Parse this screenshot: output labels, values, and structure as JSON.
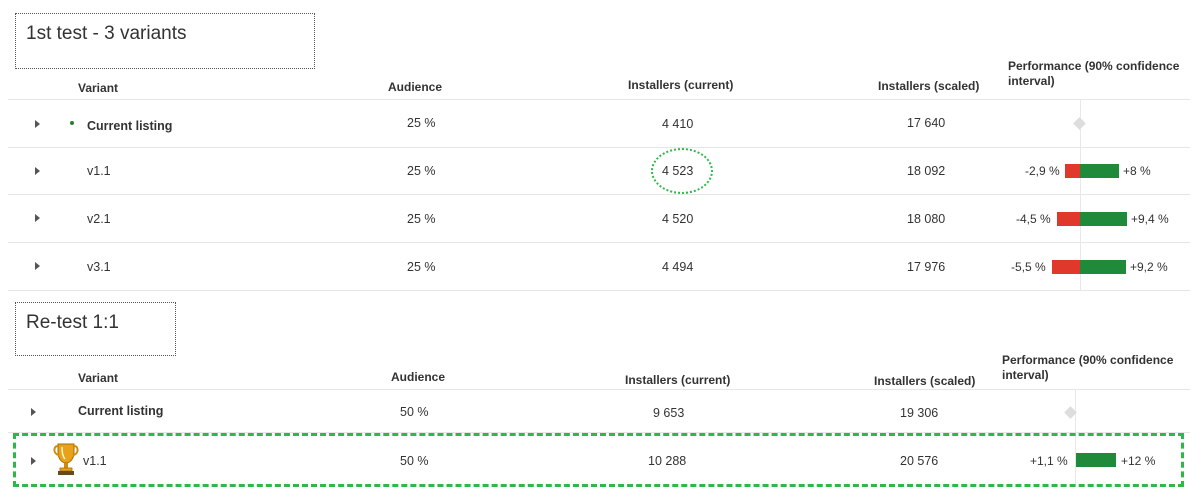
{
  "test1": {
    "title": "1st test - 3 variants",
    "headers": {
      "variant": "Variant",
      "audience": "Audience",
      "installers_current": "Installers (current)",
      "installers_scaled": "Installers (scaled)",
      "performance_line1": "Performance (90% confidence",
      "performance_line2": "interval)"
    },
    "rows": [
      {
        "variant": "Current listing",
        "audience": "25 %",
        "current": "4 410",
        "scaled": "17 640",
        "ci_low": "",
        "ci_high": ""
      },
      {
        "variant": "v1.1",
        "audience": "25 %",
        "current": "4 523",
        "scaled": "18 092",
        "ci_low": "-2,9 %",
        "ci_high": "+8 %"
      },
      {
        "variant": "v2.1",
        "audience": "25 %",
        "current": "4 520",
        "scaled": "18 080",
        "ci_low": "-4,5 %",
        "ci_high": "+9,4 %"
      },
      {
        "variant": "v3.1",
        "audience": "25 %",
        "current": "4 494",
        "scaled": "17 976",
        "ci_low": "-5,5 %",
        "ci_high": "+9,2 %"
      }
    ]
  },
  "test2": {
    "title": "Re-test 1:1",
    "headers": {
      "variant": "Variant",
      "audience": "Audience",
      "installers_current": "Installers (current)",
      "installers_scaled": "Installers (scaled)",
      "performance_line1": "Performance (90% confidence",
      "performance_line2": "interval)"
    },
    "rows": [
      {
        "variant": "Current listing",
        "audience": "50 %",
        "current": "9 653",
        "scaled": "19 306",
        "ci_low": "",
        "ci_high": ""
      },
      {
        "variant": "v1.1",
        "audience": "50 %",
        "current": "10 288",
        "scaled": "20 576",
        "ci_low": "+1,1 %",
        "ci_high": "+12 %"
      }
    ]
  },
  "colors": {
    "negative_bar": "#e0392b",
    "positive_bar": "#1e8a3a",
    "highlight": "#2eb84a"
  },
  "icons": {
    "expand": "caret-right-icon",
    "winner": "trophy-icon",
    "baseline": "diamond-icon"
  }
}
